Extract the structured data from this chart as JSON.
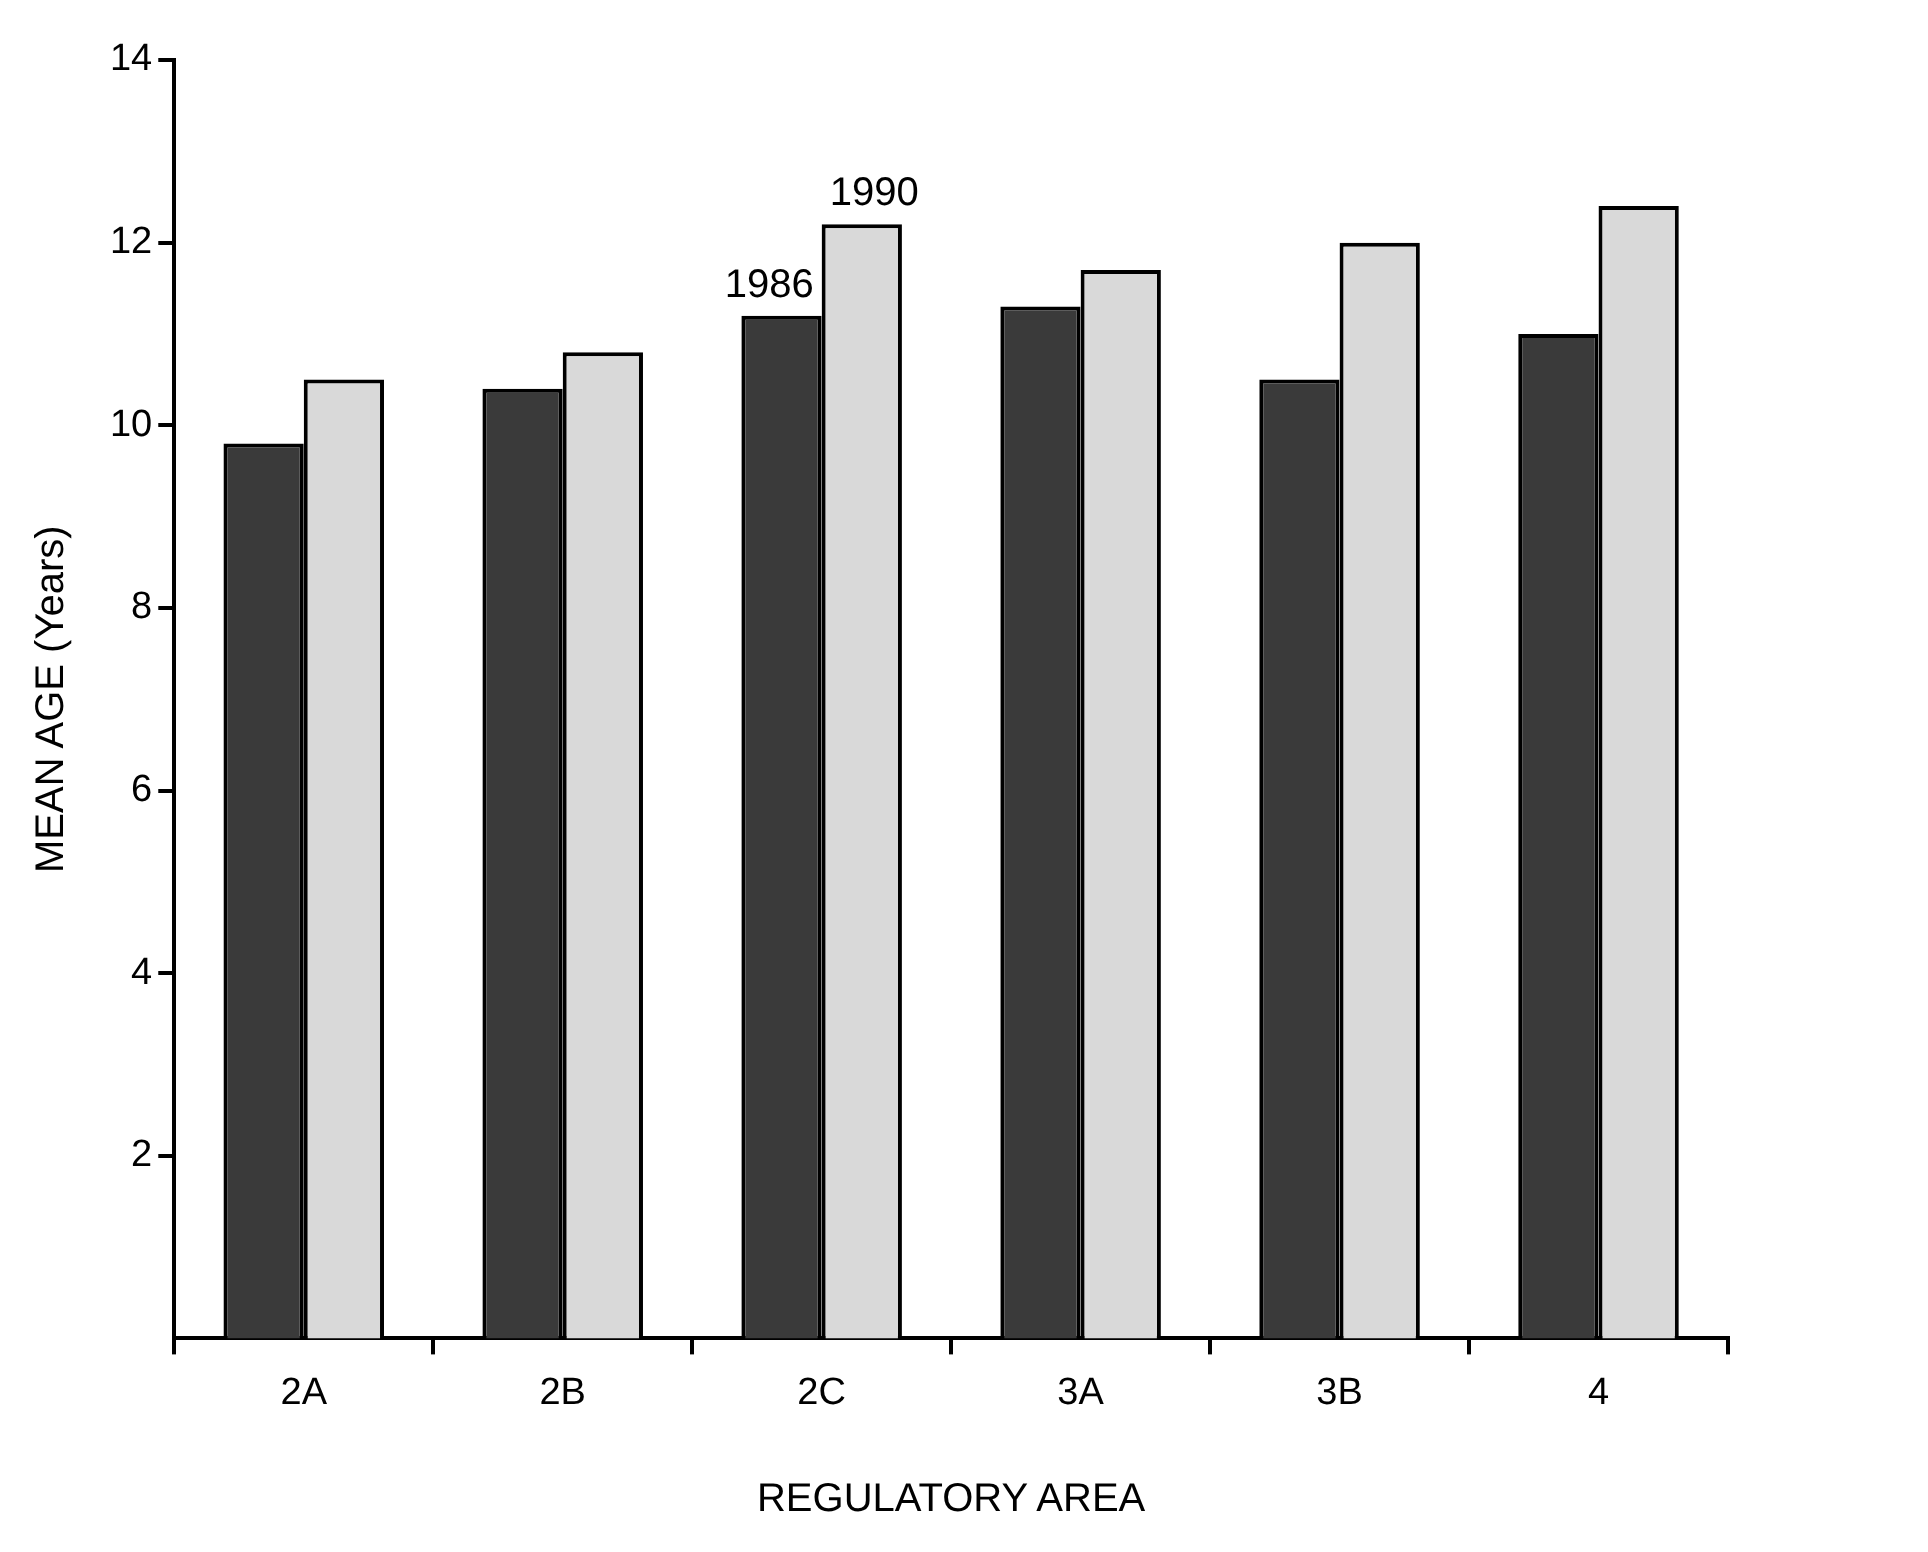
{
  "chart_data": {
    "type": "bar",
    "xlabel": "REGULATORY AREA",
    "ylabel": "MEAN AGE (Years)",
    "categories": [
      "2A",
      "2B",
      "2C",
      "3A",
      "3B",
      "4"
    ],
    "series": [
      {
        "name": "1986",
        "color": "#3a3a3a",
        "values": [
          9.8,
          10.4,
          11.2,
          11.3,
          10.5,
          11.0
        ]
      },
      {
        "name": "1990",
        "color": "#d9d9d9",
        "values": [
          10.5,
          10.8,
          12.2,
          11.7,
          12.0,
          12.4
        ]
      }
    ],
    "ylim": [
      0,
      14
    ],
    "yticks": [
      2,
      4,
      6,
      8,
      10,
      12,
      14
    ],
    "grid": false,
    "legend": false
  }
}
